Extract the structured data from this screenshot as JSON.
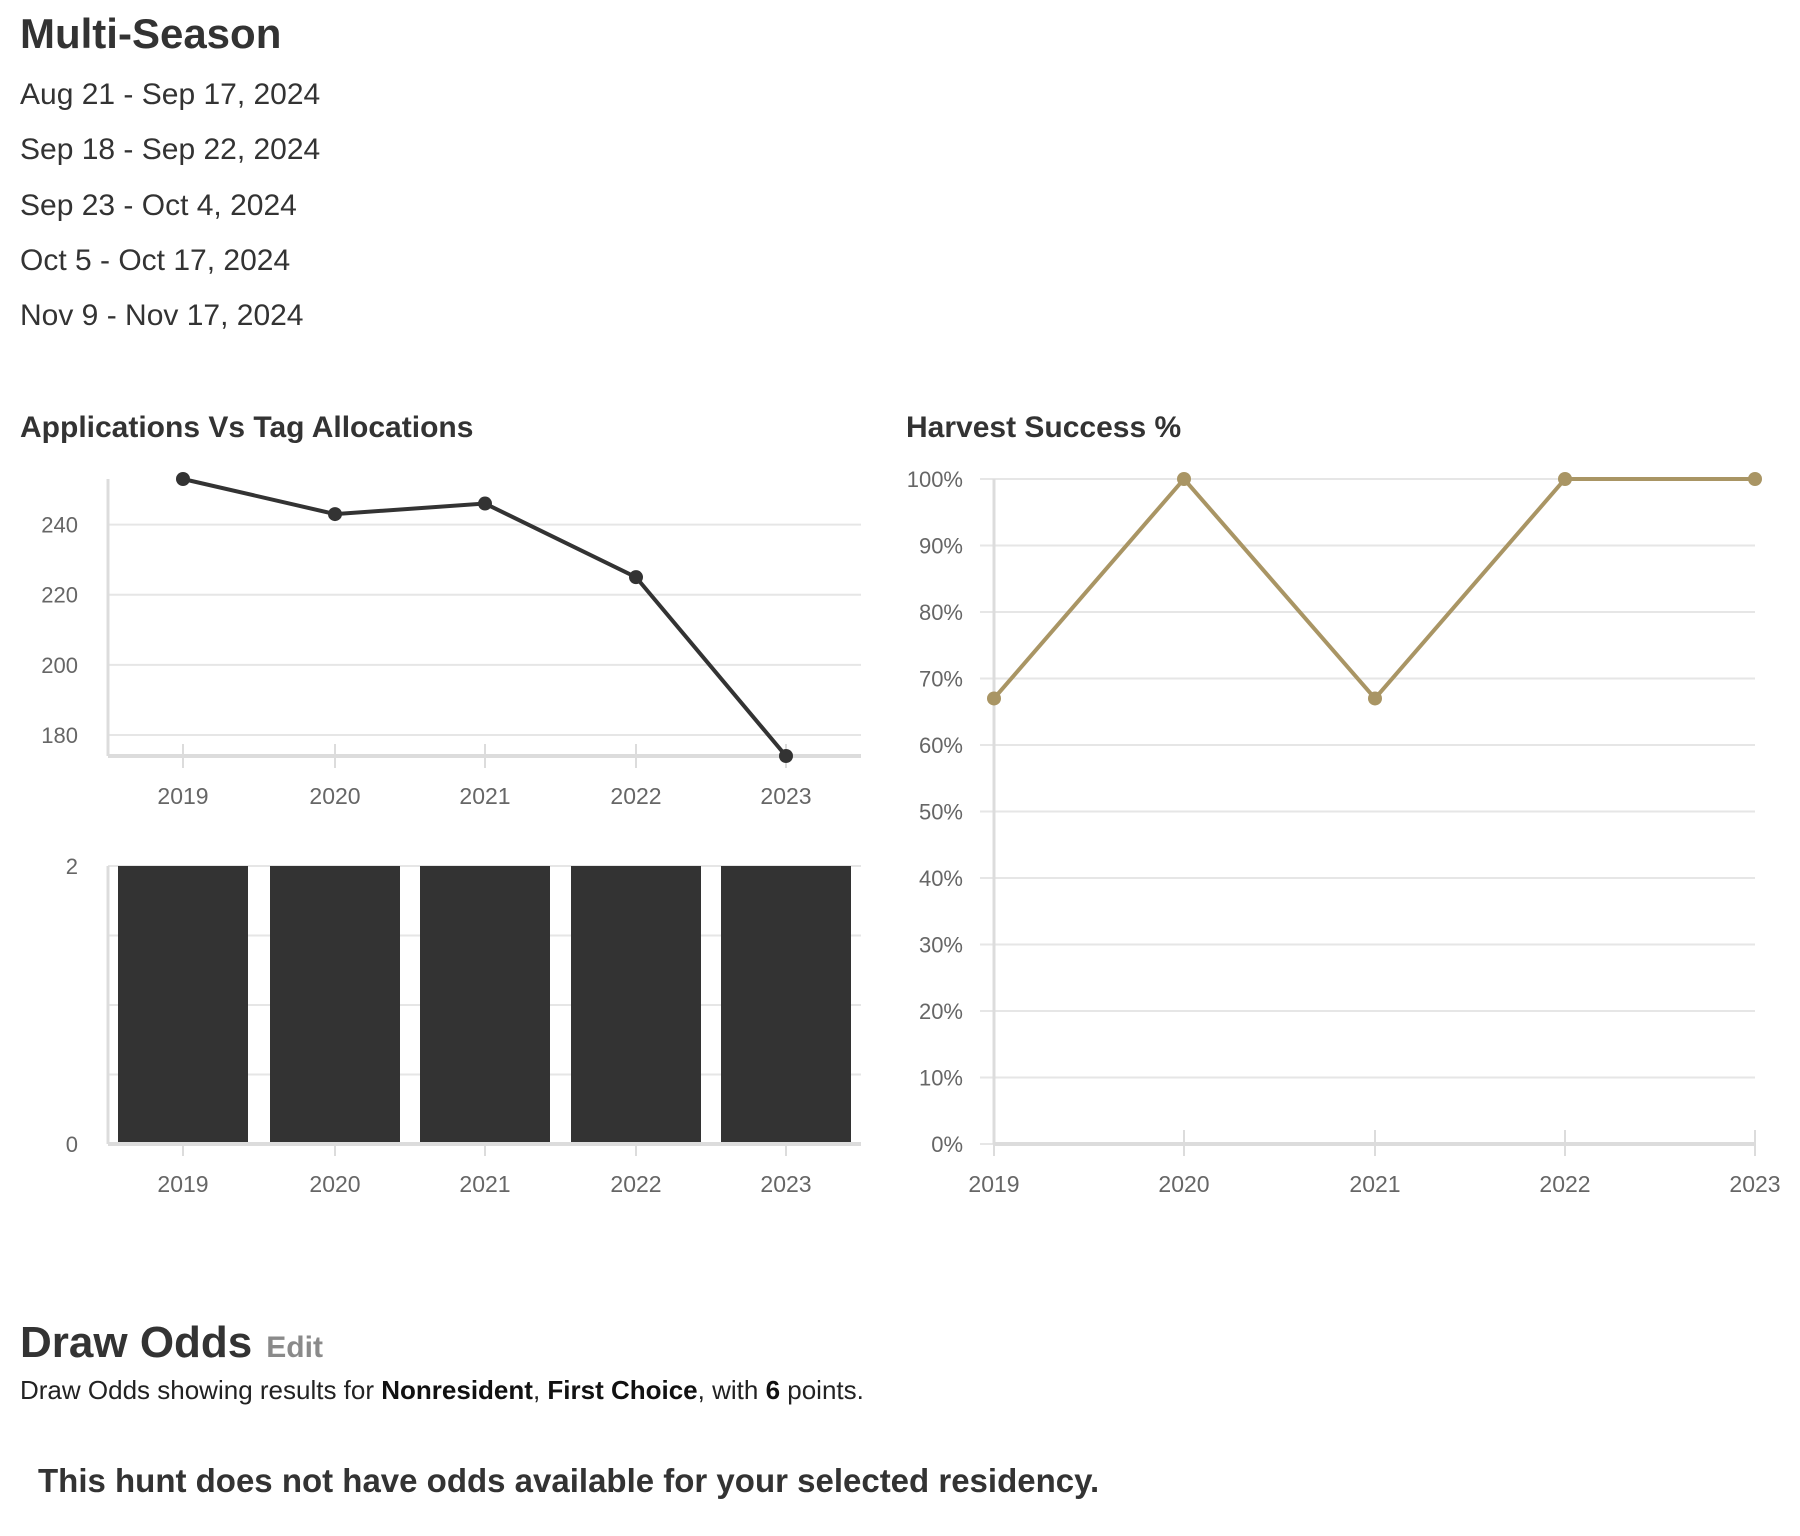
{
  "title": "Multi-Season",
  "dates": [
    "Aug 21 - Sep 17, 2024",
    "Sep 18 - Sep 22, 2024",
    "Sep 23 - Oct 4, 2024",
    "Oct 5 - Oct 17, 2024",
    "Nov 9 - Nov 17, 2024"
  ],
  "chart_data": [
    {
      "type": "line",
      "title": "Applications Vs Tag Allocations",
      "categories": [
        "2019",
        "2020",
        "2021",
        "2022",
        "2023"
      ],
      "values": [
        253,
        243,
        246,
        225,
        174
      ],
      "yticks": [
        180,
        200,
        220,
        240
      ],
      "ylim": [
        174,
        253
      ],
      "grid": true,
      "color": "#333333"
    },
    {
      "type": "bar",
      "categories": [
        "2019",
        "2020",
        "2021",
        "2022",
        "2023"
      ],
      "values": [
        2,
        2,
        2,
        2,
        2
      ],
      "yticks": [
        0,
        2
      ],
      "ylim": [
        0,
        2
      ],
      "grid": true,
      "color": "#333333"
    },
    {
      "type": "line",
      "title": "Harvest Success %",
      "categories": [
        "2019",
        "2020",
        "2021",
        "2022",
        "2023"
      ],
      "values": [
        67,
        100,
        67,
        100,
        100
      ],
      "yticks": [
        "0%",
        "10%",
        "20%",
        "30%",
        "40%",
        "50%",
        "60%",
        "70%",
        "80%",
        "90%",
        "100%"
      ],
      "ylim": [
        0,
        100
      ],
      "grid": true,
      "color": "#a99564"
    }
  ],
  "draw_odds": {
    "title": "Draw Odds",
    "edit_label": "Edit",
    "text_prefix": "Draw Odds showing results for ",
    "residency": "Nonresident",
    "sep1": ", ",
    "choice": "First Choice",
    "sep2": ", with ",
    "points": "6",
    "suffix": " points.",
    "message": "This hunt does not have odds available for your selected residency."
  }
}
